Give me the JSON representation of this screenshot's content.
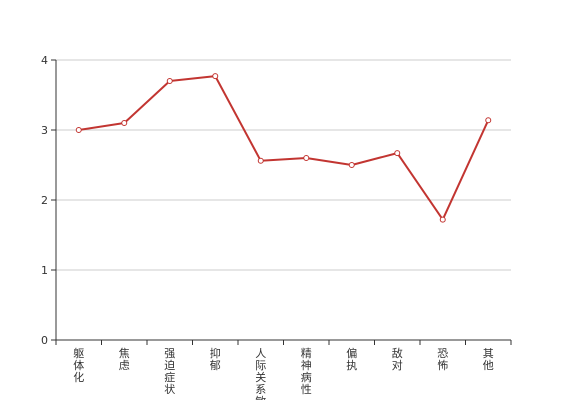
{
  "chart_data": {
    "type": "line",
    "categories": [
      "躯体化",
      "焦虑",
      "强迫症状",
      "抑郁",
      "人际关系敏感",
      "精神病性",
      "偏执",
      "敌对",
      "恐怖",
      "其他"
    ],
    "series": [
      {
        "values": [
          3.0,
          3.1,
          3.7,
          3.77,
          2.56,
          2.6,
          2.5,
          2.67,
          1.72,
          3.14
        ]
      }
    ],
    "yticks": [
      0,
      1,
      2,
      3,
      4
    ],
    "ylim": [
      0,
      4
    ],
    "grid": true,
    "legend": "none",
    "title": "",
    "xlabel": "",
    "ylabel": "",
    "colors": {
      "line": "#c23531",
      "grid": "#cccccc",
      "axis": "#333333",
      "marker_fill": "#ffffff"
    }
  }
}
